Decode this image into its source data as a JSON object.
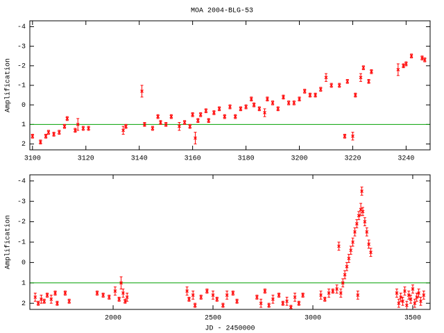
{
  "chart_data": [
    {
      "type": "scatter",
      "title": "MOA 2004-BLG-53",
      "ylabel": "Amplification",
      "color": "#ff0000",
      "hline": 1,
      "hline_color": "#00a000",
      "xlim": [
        3099,
        3249
      ],
      "xticks": [
        3100,
        3120,
        3140,
        3160,
        3180,
        3200,
        3220,
        3240
      ],
      "ylim": [
        2.3,
        -4.3
      ],
      "yticks": [
        -4,
        -3,
        -2,
        -1,
        0,
        1,
        2
      ],
      "x": [
        3100,
        3103,
        3105,
        3106,
        3108,
        3110,
        3112,
        3113,
        3116,
        3117,
        3119,
        3121,
        3134,
        3135,
        3141,
        3142,
        3145,
        3147,
        3148,
        3150,
        3152,
        3155,
        3157,
        3159,
        3160,
        3161,
        3162,
        3163,
        3165,
        3166,
        3168,
        3170,
        3172,
        3174,
        3176,
        3178,
        3180,
        3182,
        3183,
        3185,
        3187,
        3188,
        3190,
        3192,
        3194,
        3196,
        3198,
        3200,
        3202,
        3204,
        3206,
        3208,
        3210,
        3212,
        3215,
        3217,
        3218,
        3220,
        3221,
        3223,
        3224,
        3226,
        3227,
        3237,
        3239,
        3240,
        3242,
        3246,
        3247
      ],
      "values": [
        1.6,
        1.9,
        1.6,
        1.4,
        1.5,
        1.4,
        1.1,
        0.7,
        1.3,
        1.0,
        1.2,
        1.2,
        1.3,
        1.1,
        -0.7,
        1.0,
        1.2,
        0.6,
        0.9,
        1.0,
        0.6,
        1.1,
        0.9,
        1.1,
        0.5,
        1.7,
        0.8,
        0.5,
        0.3,
        0.8,
        0.4,
        0.2,
        0.6,
        0.1,
        0.6,
        0.2,
        0.1,
        -0.3,
        0.0,
        0.2,
        0.4,
        -0.3,
        -0.1,
        0.2,
        -0.4,
        -0.1,
        -0.1,
        -0.3,
        -0.7,
        -0.5,
        -0.5,
        -0.8,
        -1.4,
        -1.0,
        -1.0,
        1.6,
        -1.2,
        1.6,
        -0.5,
        -1.4,
        -1.9,
        -1.2,
        -1.7,
        -1.8,
        -2.0,
        -2.1,
        -2.5,
        -2.4,
        -2.3
      ],
      "errors": [
        0.1,
        0.1,
        0.1,
        0.1,
        0.1,
        0.1,
        0.1,
        0.1,
        0.1,
        0.3,
        0.1,
        0.1,
        0.2,
        0.1,
        0.3,
        0.1,
        0.1,
        0.1,
        0.1,
        0.1,
        0.1,
        0.2,
        0.1,
        0.1,
        0.1,
        0.3,
        0.1,
        0.1,
        0.1,
        0.1,
        0.1,
        0.1,
        0.1,
        0.1,
        0.1,
        0.1,
        0.1,
        0.1,
        0.1,
        0.1,
        0.2,
        0.1,
        0.1,
        0.1,
        0.1,
        0.1,
        0.1,
        0.1,
        0.1,
        0.1,
        0.1,
        0.1,
        0.2,
        0.1,
        0.1,
        0.1,
        0.1,
        0.2,
        0.1,
        0.2,
        0.1,
        0.1,
        0.1,
        0.3,
        0.1,
        0.1,
        0.1,
        0.1,
        0.1
      ]
    },
    {
      "type": "scatter",
      "ylabel": "Amplification",
      "xlabel": "JD - 2450000",
      "color": "#ff0000",
      "hline": 1,
      "hline_color": "#00a000",
      "xlim": [
        1583,
        3587
      ],
      "xticks": [
        2000,
        2500,
        3000,
        3500
      ],
      "ylim": [
        2.3,
        -4.3
      ],
      "yticks": [
        -4,
        -3,
        -2,
        -1,
        0,
        1,
        2
      ],
      "x": [
        1610,
        1625,
        1640,
        1655,
        1670,
        1690,
        1710,
        1720,
        1760,
        1780,
        1920,
        1950,
        1980,
        2010,
        2030,
        2040,
        2050,
        2060,
        2070,
        2370,
        2380,
        2400,
        2410,
        2440,
        2470,
        2500,
        2520,
        2550,
        2570,
        2600,
        2620,
        2720,
        2740,
        2760,
        2780,
        2800,
        2830,
        2850,
        2870,
        2890,
        2910,
        2930,
        2950,
        3040,
        3060,
        3080,
        3100,
        3120,
        3130,
        3140,
        3150,
        3160,
        3170,
        3180,
        3190,
        3200,
        3210,
        3220,
        3225,
        3230,
        3240,
        3245,
        3250,
        3260,
        3270,
        3280,
        3290,
        3420,
        3430,
        3440,
        3450,
        3460,
        3470,
        3480,
        3490,
        3500,
        3510,
        3520,
        3530,
        3540,
        3555
      ],
      "values": [
        1.7,
        2.0,
        1.8,
        1.9,
        1.6,
        1.8,
        1.5,
        2.0,
        1.5,
        1.9,
        1.5,
        1.6,
        1.7,
        1.4,
        1.8,
        1.0,
        1.5,
        1.9,
        1.7,
        1.4,
        1.8,
        1.6,
        2.1,
        1.7,
        1.4,
        1.6,
        1.8,
        2.1,
        1.6,
        1.5,
        1.9,
        1.7,
        2.0,
        1.4,
        2.1,
        1.8,
        1.6,
        2.0,
        1.9,
        2.2,
        1.7,
        2.0,
        1.6,
        1.6,
        1.8,
        1.5,
        1.4,
        1.3,
        -0.8,
        1.5,
        1.0,
        0.6,
        0.2,
        -0.2,
        -0.6,
        -1.0,
        -1.5,
        -1.9,
        1.6,
        -2.3,
        -2.6,
        -3.5,
        -2.5,
        -2.0,
        -1.5,
        -0.9,
        -0.5,
        1.5,
        2.0,
        1.7,
        1.9,
        1.4,
        2.1,
        1.6,
        1.8,
        1.3,
        2.0,
        1.7,
        1.5,
        1.9,
        1.6
      ],
      "errors": [
        0.2,
        0.1,
        0.2,
        0.1,
        0.1,
        0.2,
        0.1,
        0.1,
        0.1,
        0.1,
        0.1,
        0.1,
        0.1,
        0.2,
        0.1,
        0.3,
        0.2,
        0.1,
        0.2,
        0.2,
        0.1,
        0.2,
        0.1,
        0.1,
        0.1,
        0.2,
        0.1,
        0.1,
        0.2,
        0.1,
        0.1,
        0.1,
        0.2,
        0.1,
        0.1,
        0.2,
        0.1,
        0.1,
        0.2,
        0.1,
        0.2,
        0.1,
        0.1,
        0.2,
        0.1,
        0.2,
        0.1,
        0.2,
        0.2,
        0.2,
        0.2,
        0.2,
        0.2,
        0.2,
        0.2,
        0.2,
        0.2,
        0.2,
        0.2,
        0.2,
        0.3,
        0.2,
        0.2,
        0.2,
        0.2,
        0.2,
        0.2,
        0.2,
        0.2,
        0.2,
        0.2,
        0.2,
        0.2,
        0.2,
        0.2,
        0.2,
        0.2,
        0.2,
        0.2,
        0.2,
        0.2
      ]
    }
  ]
}
